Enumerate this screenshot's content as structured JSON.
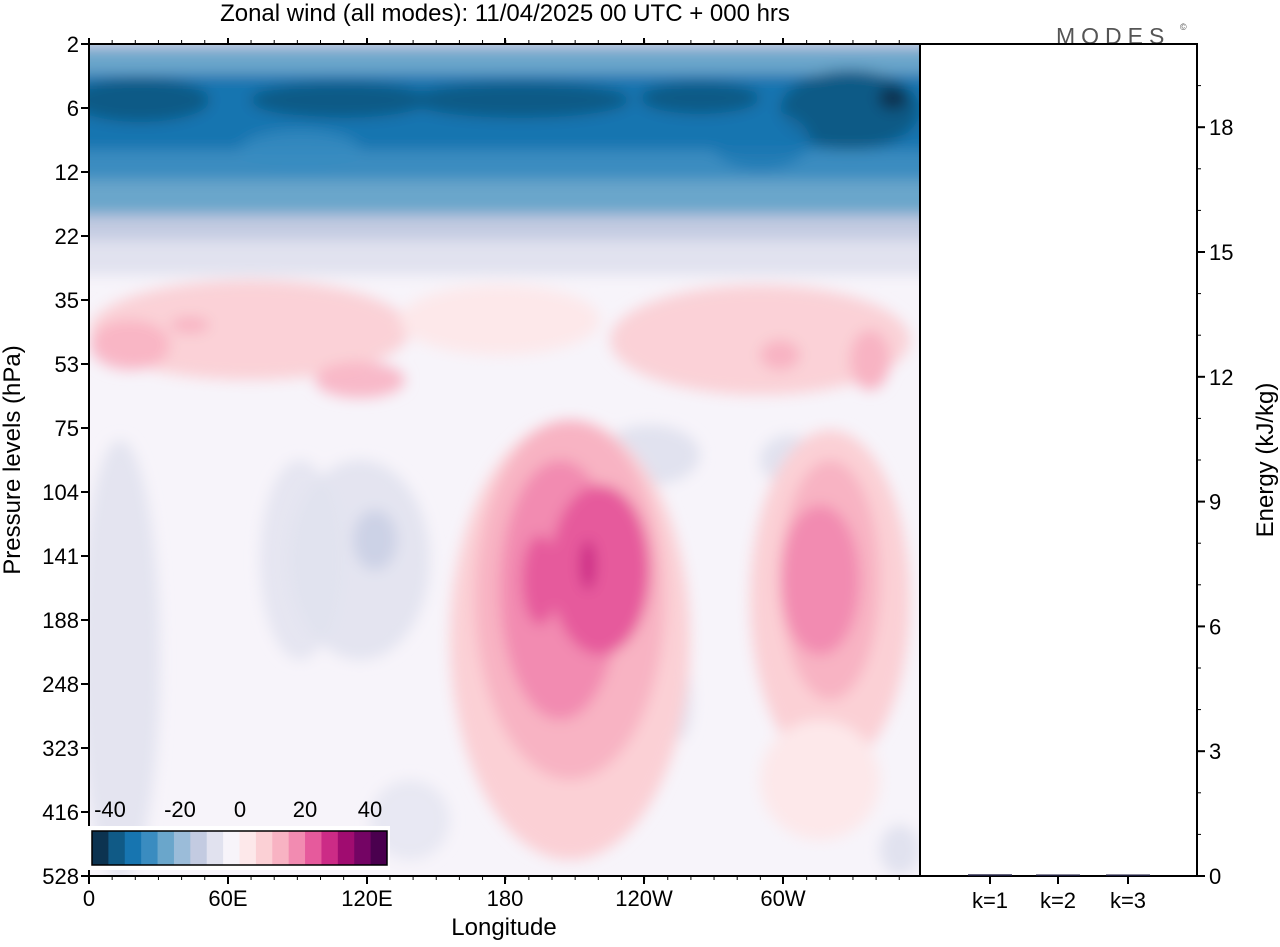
{
  "title": "Zonal wind (all modes):  11/04/2025  00 UTC  + 000 hrs",
  "logo_text": "MODES",
  "logo_mark": "©",
  "chart_data": [
    {
      "type": "heatmap",
      "title": "Zonal wind (all modes):  11/04/2025  00 UTC  + 000 hrs",
      "xlabel": "Longitude",
      "ylabel": "Pressure levels (hPa)",
      "x_ticks": [
        "0",
        "60E",
        "120E",
        "180",
        "120W",
        "60W"
      ],
      "y_ticks": [
        "2",
        "6",
        "12",
        "22",
        "35",
        "53",
        "75",
        "104",
        "141",
        "188",
        "248",
        "323",
        "416",
        "528"
      ],
      "y_scale": "log-pressure, increasing downward",
      "colorbar": {
        "tick_labels": [
          "-40",
          "-20",
          "0",
          "20",
          "40"
        ],
        "colors": [
          "#0c3350",
          "#105a86",
          "#1775b0",
          "#3a8cc0",
          "#6aa6cb",
          "#9bbcd9",
          "#c3cbe1",
          "#e1e2ef",
          "#f7f4fa",
          "#fde8ea",
          "#fbd0d5",
          "#f8b3c3",
          "#f28bb1",
          "#e65a9c",
          "#cc2b86",
          "#a00c70",
          "#740464",
          "#4a004e"
        ]
      },
      "grid": false
    },
    {
      "type": "bar",
      "categories": [
        "k=1",
        "k=2",
        "k=3"
      ],
      "values": [
        0.04,
        0.02,
        0.03
      ],
      "ylabel": "Energy (kJ/kg)",
      "y_ticks": [
        "0",
        "3",
        "6",
        "9",
        "12",
        "15",
        "18"
      ],
      "ylim": [
        0,
        20
      ],
      "bar_color": "#1a1a3a",
      "grid": false
    }
  ]
}
